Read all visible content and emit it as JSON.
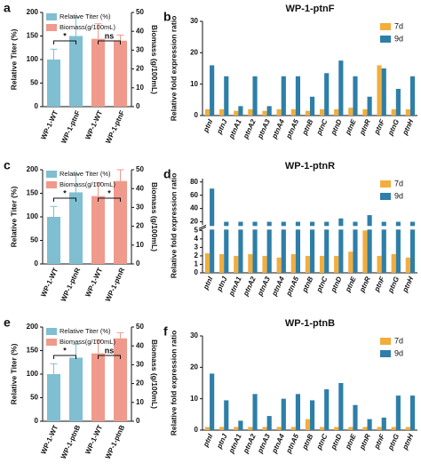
{
  "chart_data": [
    {
      "type": "dual_bar",
      "label": "a",
      "ylabel": "Relative Titer (%)",
      "y2label": "Biomass (g/100mL)",
      "categories": [
        "WP-1-WT",
        "WP-1-ptnF",
        "WP-1-WT",
        "WP-1-ptnF"
      ],
      "series": [
        {
          "name": "Relative Titer (%)",
          "color": "#7fbfd1",
          "values": [
            100,
            150,
            null,
            null
          ],
          "errors": [
            22,
            40,
            null,
            null
          ]
        },
        {
          "name": "Biomass(g/100mL)",
          "color": "#ef9a8c",
          "axis": "y2",
          "values": [
            null,
            null,
            36,
            35
          ],
          "errors": [
            null,
            null,
            8,
            3
          ]
        }
      ],
      "annotations": [
        "*",
        "ns"
      ],
      "ylim": [
        0,
        200
      ],
      "yticks": [
        0,
        50,
        100,
        150,
        200
      ],
      "y2lim": [
        0,
        50
      ],
      "y2ticks": [
        0,
        10,
        20,
        30,
        40,
        50
      ]
    },
    {
      "type": "grouped_bar",
      "label": "b",
      "title": "WP-1-ptnF",
      "ylabel": "Relative fold expression ratio",
      "categories": [
        "ptnI",
        "ptnJ",
        "ptnA1",
        "ptnA2",
        "ptnA3",
        "ptnA4",
        "ptnA5",
        "ptnB",
        "ptnC",
        "ptnD",
        "ptnE",
        "ptnR",
        "ptnF",
        "ptnG",
        "ptnH"
      ],
      "series": [
        {
          "name": "7d",
          "color": "#f2ad3c",
          "values": [
            2,
            2,
            1.5,
            2,
            1.5,
            2,
            2,
            1.5,
            2,
            2,
            2.5,
            2,
            16,
            2,
            2
          ]
        },
        {
          "name": "9d",
          "color": "#2e7fa8",
          "values": [
            16,
            12.5,
            3,
            12.5,
            3,
            12.5,
            12.5,
            6,
            13.5,
            17.5,
            12.5,
            6,
            15,
            8.5,
            12.5
          ]
        }
      ],
      "ylim": [
        0,
        30
      ],
      "yticks": [
        0,
        10,
        20,
        30
      ]
    },
    {
      "type": "dual_bar",
      "label": "c",
      "ylabel": "Relative Titer (%)",
      "y2label": "Biomass (g/100mL)",
      "categories": [
        "WP-1-WT",
        "WP-1-ptnR",
        "WP-1-WT",
        "WP-1-ptnR"
      ],
      "series": [
        {
          "name": "Relative Titer (%)",
          "color": "#7fbfd1",
          "values": [
            100,
            152,
            null,
            null
          ],
          "errors": [
            22,
            38,
            null,
            null
          ]
        },
        {
          "name": "Biomass(g/100mL)",
          "color": "#ef9a8c",
          "axis": "y2",
          "values": [
            null,
            null,
            36,
            44
          ],
          "errors": [
            null,
            null,
            7,
            6
          ]
        }
      ],
      "annotations": [
        "*",
        "*"
      ],
      "ylim": [
        0,
        200
      ],
      "yticks": [
        0,
        50,
        100,
        150,
        200
      ],
      "y2lim": [
        0,
        50
      ],
      "y2ticks": [
        0,
        10,
        20,
        30,
        40,
        50
      ]
    },
    {
      "type": "broken_bar",
      "label": "d",
      "title": "WP-1-ptnR",
      "ylabel": "Relative fold expression ratio",
      "categories": [
        "ptnI",
        "ptnJ",
        "ptnA1",
        "ptnA2",
        "ptnA3",
        "ptnA4",
        "ptnA5",
        "ptnB",
        "ptnC",
        "ptnD",
        "ptnE",
        "ptnR",
        "ptnF",
        "ptnG",
        "ptnH"
      ],
      "series": [
        {
          "name": "7d",
          "color": "#f2ad3c",
          "values": [
            2.3,
            2.2,
            2,
            2.2,
            2,
            1.8,
            2.2,
            2,
            2,
            2,
            2.5,
            5,
            2,
            2.2,
            1.8
          ]
        },
        {
          "name": "9d",
          "color": "#2e7fa8",
          "values": [
            70,
            20,
            20,
            20,
            20,
            20,
            20,
            20,
            20,
            25,
            20,
            30,
            20,
            20,
            20
          ]
        }
      ],
      "ylim": [
        0,
        85
      ],
      "ybreak": [
        5,
        15
      ],
      "yticks": [
        0,
        1,
        2,
        3,
        4,
        5,
        20,
        40,
        60,
        80
      ]
    },
    {
      "type": "dual_bar",
      "label": "e",
      "ylabel": "Relative Titer (%)",
      "y2label": "Biomass (g/100mL)",
      "categories": [
        "WP-1-WT",
        "WP-1-ptnB",
        "WP-1-WT",
        "WP-1-ptnB"
      ],
      "series": [
        {
          "name": "Relative Titer (%)",
          "color": "#7fbfd1",
          "values": [
            100,
            135,
            null,
            null
          ],
          "errors": [
            22,
            28,
            null,
            null
          ]
        },
        {
          "name": "Biomass(g/100mL)",
          "color": "#ef9a8c",
          "axis": "y2",
          "values": [
            null,
            null,
            36,
            44
          ],
          "errors": [
            null,
            null,
            7,
            3
          ]
        }
      ],
      "annotations": [
        "*",
        "ns"
      ],
      "ylim": [
        0,
        200
      ],
      "yticks": [
        0,
        50,
        100,
        150,
        200
      ],
      "y2lim": [
        0,
        50
      ],
      "y2ticks": [
        0,
        10,
        20,
        30,
        40,
        50
      ]
    },
    {
      "type": "grouped_bar",
      "label": "f",
      "title": "WP-1-ptnB",
      "ylabel": "Relative fold expression ratio",
      "categories": [
        "ptnI",
        "ptnJ",
        "ptnA1",
        "ptnA2",
        "ptnA3",
        "ptnA4",
        "ptnA5",
        "ptnB",
        "ptnC",
        "ptnD",
        "ptnE",
        "ptnR",
        "ptnF",
        "ptnG",
        "ptnH"
      ],
      "series": [
        {
          "name": "7d",
          "color": "#f2ad3c",
          "values": [
            1,
            1,
            1,
            1,
            1,
            1,
            1,
            3.5,
            1,
            1,
            1,
            1,
            1,
            1,
            1
          ]
        },
        {
          "name": "9d",
          "color": "#2e7fa8",
          "values": [
            18,
            9.5,
            3,
            11.5,
            4.5,
            10,
            11.5,
            9.5,
            13,
            15,
            8,
            3.5,
            4,
            11,
            11
          ]
        }
      ],
      "ylim": [
        0,
        30
      ],
      "yticks": [
        0,
        10,
        20,
        30
      ]
    }
  ]
}
